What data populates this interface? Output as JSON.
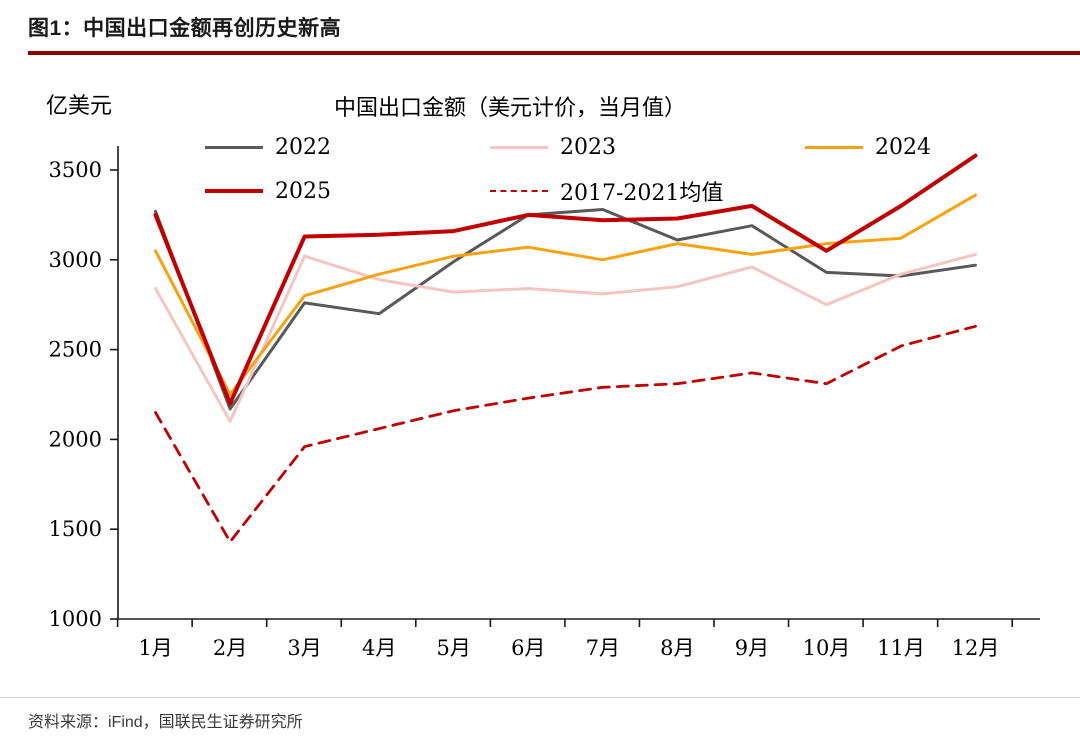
{
  "header": {
    "title": "图1：中国出口金额再创历史新高"
  },
  "chart": {
    "unit_label": "亿美元",
    "title": "中国出口金额（美元计价，当月值）"
  },
  "source": {
    "text": "资料来源：iFind，国联民生证券研究所"
  },
  "colors": {
    "title_rule": "#8B0000",
    "axis": "#1a1a1a",
    "divider": "#d8d8d8"
  },
  "chart_data": {
    "type": "line",
    "title": "中国出口金额（美元计价，当月值）",
    "unit": "亿美元",
    "categories": [
      "1月",
      "2月",
      "3月",
      "4月",
      "5月",
      "6月",
      "7月",
      "8月",
      "9月",
      "10月",
      "11月",
      "12月"
    ],
    "series": [
      {
        "name": "2022",
        "color": "#595959",
        "width": 3,
        "dash": null,
        "values": [
          3270,
          2170,
          2760,
          2700,
          2990,
          3250,
          3280,
          3110,
          3190,
          2930,
          2910,
          2970
        ]
      },
      {
        "name": "2023",
        "color": "#F3C6C4",
        "width": 3,
        "dash": null,
        "values": [
          2840,
          2100,
          3020,
          2890,
          2820,
          2840,
          2810,
          2850,
          2960,
          2750,
          2920,
          3030
        ]
      },
      {
        "name": "2024",
        "color": "#F7A311",
        "width": 3,
        "dash": null,
        "values": [
          3050,
          2250,
          2800,
          2920,
          3020,
          3070,
          3000,
          3090,
          3030,
          3090,
          3120,
          3360
        ]
      },
      {
        "name": "2025",
        "color": "#C00000",
        "width": 4,
        "dash": null,
        "values": [
          3250,
          2200,
          3130,
          3140,
          3160,
          3250,
          3220,
          3230,
          3300,
          3050,
          3300,
          3580
        ]
      },
      {
        "name": "2017-2021均值",
        "color": "#C00000",
        "width": 2.8,
        "dash": "11 8",
        "values": [
          2150,
          1430,
          1960,
          2060,
          2160,
          2230,
          2290,
          2310,
          2370,
          2310,
          2520,
          2630
        ]
      }
    ],
    "ylim": [
      1000,
      3700
    ],
    "yticks": [
      1000,
      1500,
      2000,
      2500,
      3000,
      3500
    ],
    "grid": false,
    "legend_position": "top"
  }
}
